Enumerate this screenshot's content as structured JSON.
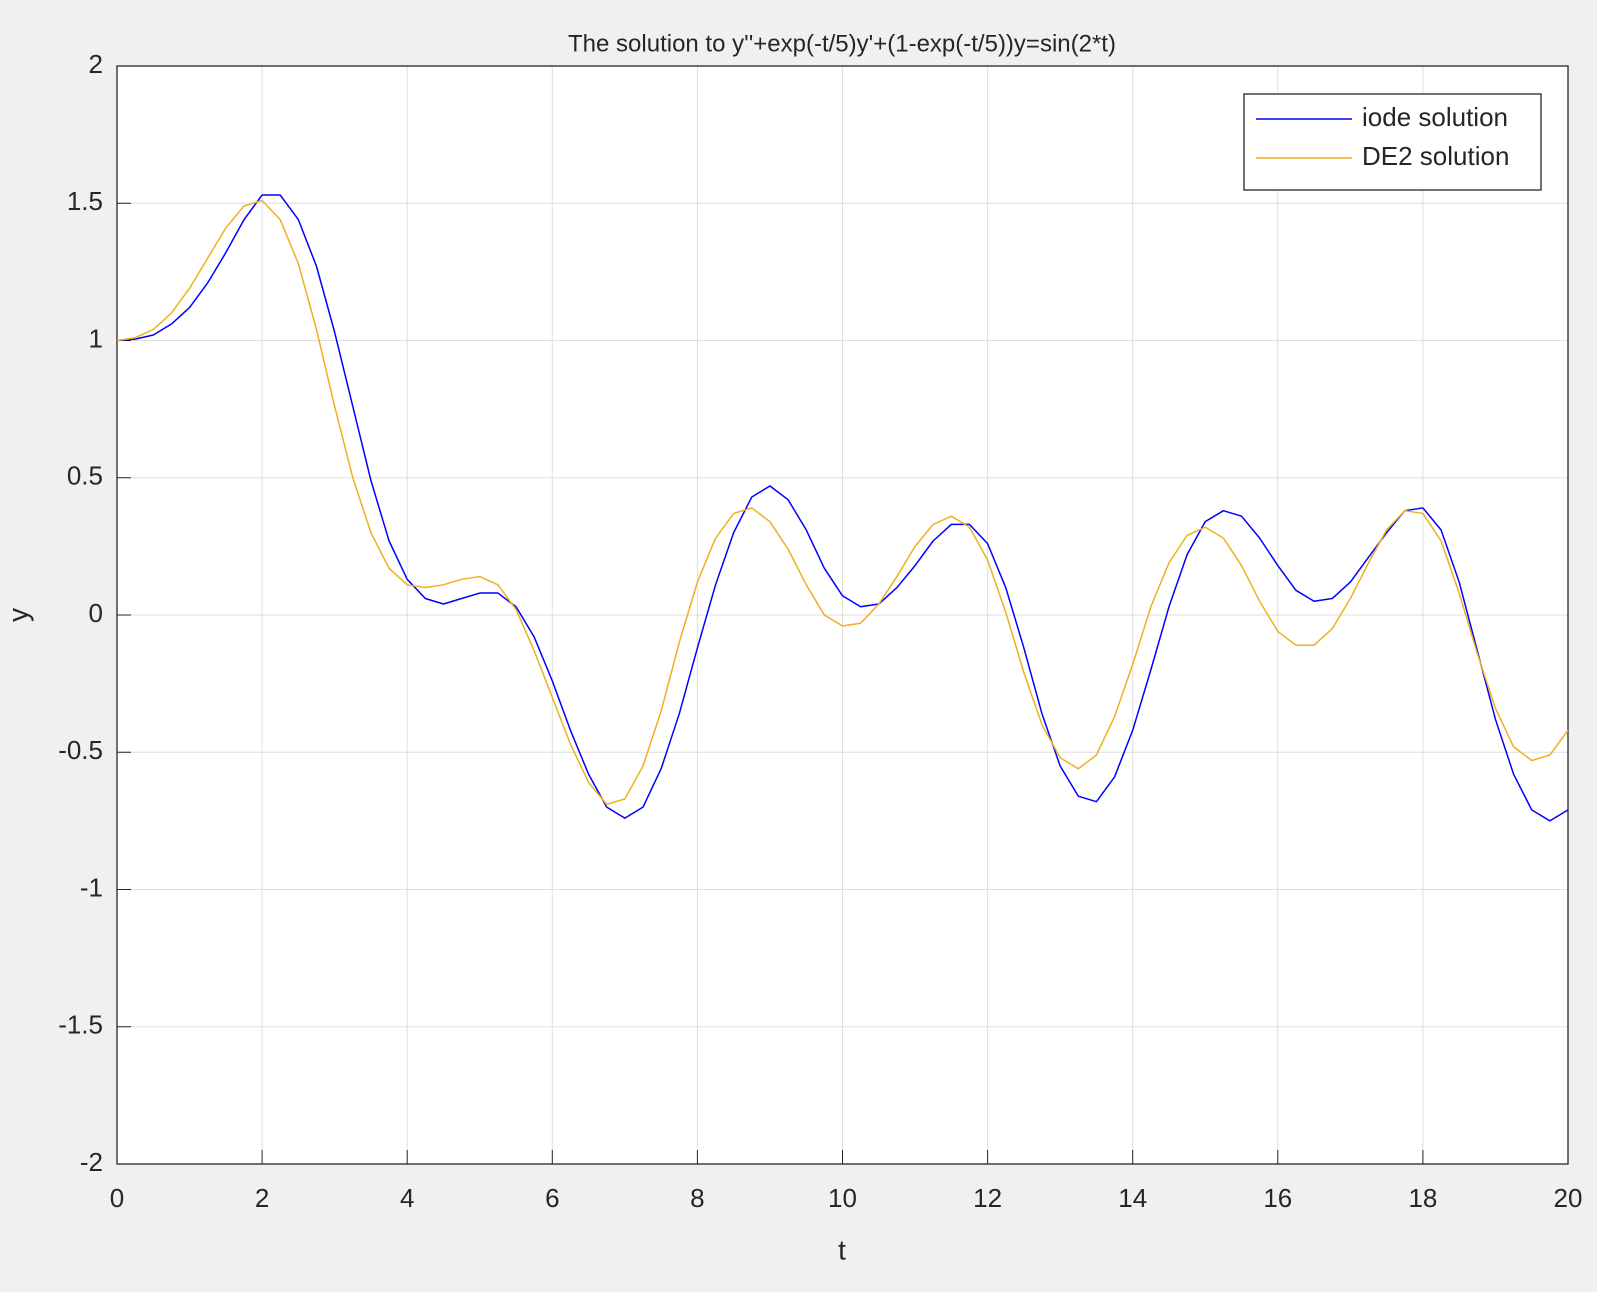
{
  "chart_data": {
    "type": "line",
    "title": "The solution to y''+exp(-t/5)y'+(1-exp(-t/5))y=sin(2*t)",
    "x_label": "t",
    "y_label": "y",
    "x": [
      0,
      0.25,
      0.5,
      0.75,
      1,
      1.25,
      1.5,
      1.75,
      2,
      2.25,
      2.5,
      2.75,
      3,
      3.25,
      3.5,
      3.75,
      4,
      4.25,
      4.5,
      4.75,
      5,
      5.25,
      5.5,
      5.75,
      6,
      6.25,
      6.5,
      6.75,
      7,
      7.25,
      7.5,
      7.75,
      8,
      8.25,
      8.5,
      8.75,
      9,
      9.25,
      9.5,
      9.75,
      10,
      10.25,
      10.5,
      10.75,
      11,
      11.25,
      11.5,
      11.75,
      12,
      12.25,
      12.5,
      12.75,
      13,
      13.25,
      13.5,
      13.75,
      14,
      14.25,
      14.5,
      14.75,
      15,
      15.25,
      15.5,
      15.75,
      16,
      16.25,
      16.5,
      16.75,
      17,
      17.25,
      17.5,
      17.75,
      18,
      18.25,
      18.5,
      18.75,
      19,
      19.25,
      19.5,
      19.75,
      20
    ],
    "series": [
      {
        "name": "iode solution",
        "color": "#0000ff",
        "values": [
          1.0,
          1.005,
          1.02,
          1.06,
          1.12,
          1.21,
          1.32,
          1.44,
          1.53,
          1.53,
          1.44,
          1.27,
          1.03,
          0.76,
          0.49,
          0.27,
          0.13,
          0.06,
          0.04,
          0.06,
          0.08,
          0.08,
          0.03,
          -0.08,
          -0.24,
          -0.42,
          -0.58,
          -0.7,
          -0.74,
          -0.7,
          -0.56,
          -0.36,
          -0.12,
          0.11,
          0.3,
          0.43,
          0.47,
          0.42,
          0.31,
          0.17,
          0.07,
          0.03,
          0.04,
          0.1,
          0.18,
          0.27,
          0.33,
          0.33,
          0.26,
          0.1,
          -0.12,
          -0.36,
          -0.55,
          -0.66,
          -0.68,
          -0.59,
          -0.42,
          -0.2,
          0.03,
          0.22,
          0.34,
          0.38,
          0.36,
          0.28,
          0.18,
          0.09,
          0.05,
          0.06,
          0.12,
          0.21,
          0.3,
          0.38,
          0.39,
          0.31,
          0.12,
          -0.13,
          -0.38,
          -0.58,
          -0.71,
          -0.75,
          -0.71
        ]
      },
      {
        "name": "DE2 solution",
        "color": "#edb120",
        "values": [
          1.0,
          1.01,
          1.04,
          1.1,
          1.19,
          1.3,
          1.41,
          1.49,
          1.51,
          1.44,
          1.28,
          1.04,
          0.76,
          0.5,
          0.3,
          0.17,
          0.11,
          0.1,
          0.11,
          0.13,
          0.14,
          0.11,
          0.02,
          -0.13,
          -0.3,
          -0.47,
          -0.61,
          -0.69,
          -0.67,
          -0.55,
          -0.35,
          -0.1,
          0.12,
          0.28,
          0.37,
          0.39,
          0.34,
          0.24,
          0.11,
          0.0,
          -0.04,
          -0.03,
          0.04,
          0.14,
          0.25,
          0.33,
          0.36,
          0.32,
          0.2,
          0.01,
          -0.21,
          -0.4,
          -0.52,
          -0.56,
          -0.51,
          -0.37,
          -0.18,
          0.03,
          0.19,
          0.29,
          0.32,
          0.28,
          0.18,
          0.05,
          -0.06,
          -0.11,
          -0.11,
          -0.05,
          0.06,
          0.19,
          0.31,
          0.38,
          0.37,
          0.27,
          0.08,
          -0.14,
          -0.34,
          -0.48,
          -0.53,
          -0.51,
          -0.42
        ]
      }
    ],
    "xlim": [
      0,
      20
    ],
    "xticks": [
      0,
      2,
      4,
      6,
      8,
      10,
      12,
      14,
      16,
      18,
      20
    ],
    "ylim": [
      -2,
      2
    ],
    "yticks": [
      -2,
      -1.5,
      -1,
      -0.5,
      0,
      0.5,
      1,
      1.5,
      2
    ],
    "grid": true,
    "legend": "northeast"
  }
}
